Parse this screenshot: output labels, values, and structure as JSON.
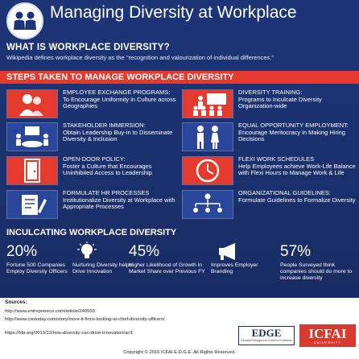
{
  "header": {
    "title": "Managing Diversity at Workplace",
    "icon": "people-icon"
  },
  "what_is": {
    "heading": "WHAT IS WORKPLACE DIVERSITY?",
    "text": "Wikipedia defines workplace diversity as the \"recognition and valourization of individual differences.\""
  },
  "steps": {
    "heading": "STEPS TAKEN TO MANAGE WORKPLACE DIVERSITY",
    "items": [
      {
        "title": "EMPLOYEE EXCHANGE PROGRAMS:",
        "desc": "To Encourage Uniformity in Culture across Geographies",
        "icon": "people-exchange-icon",
        "color": "#e63a2e"
      },
      {
        "title": "DIVERSITY TRAINING:",
        "desc": "Programs to Inculcate Diversity Organization-wide",
        "icon": "classroom-icon",
        "color": "#e63a2e"
      },
      {
        "title": "STAKEHOLDER IMMERSION:",
        "desc": "Obtain Leadership Buy-in to Disseminate Diversity & Inclusion",
        "icon": "meeting-icon",
        "color": "#2a469a"
      },
      {
        "title": "EQUAL OPPORTUNITY EMPLOYMENT:",
        "desc": "Encourage Meritocracy in Making Hiring Decisions",
        "icon": "gender-icon",
        "color": "#2a469a"
      },
      {
        "title": "OPEN-DOOR POLICY:",
        "desc": "Foster a Culture that Encourages Uninhibited Access to Leadership",
        "icon": "door-icon",
        "color": "#e63a2e"
      },
      {
        "title": "FLEXI WORK SCHEDULES",
        "desc": "Help Employees achieve Work-Life Balance with Flexi Hours to Manage Work & Life",
        "icon": "clock-icon",
        "color": "#e63a2e"
      },
      {
        "title": "FORMULATE HR PROCESSES",
        "desc": "Institutionalize Diversity at Workplace with Appropriate Processes",
        "icon": "document-icon",
        "color": "#2a469a"
      },
      {
        "title": "ORGANIZATIONAL GUIDELINES:",
        "desc": "Formulate Guidelines to Formalize Diversity",
        "icon": "org-chart-icon",
        "color": "#2a469a"
      }
    ]
  },
  "inculcating": {
    "heading": "INCULCATING WORKPLACE DIVERSITY",
    "stats": [
      {
        "value": "20%",
        "text": "Fortune 500 Companies Employ Diversity Officers"
      },
      {
        "value": "",
        "text": "Nurturing Diversity helps Drive Innovation",
        "icon": "lightbulb-icon"
      },
      {
        "value": "45%",
        "text": "Higher Likelihood of Growth in Market Share over Previous FY"
      },
      {
        "value": "",
        "text": "Improves Employer Branding",
        "icon": "megaphone-icon"
      },
      {
        "value": "57%",
        "text": "People Surveyed think companies should do more to increase diversity"
      }
    ]
  },
  "sources": {
    "heading": "Sources:",
    "links": [
      "http://www.entrepreneur.com/article/240550",
      "http://www.cxotoday.com/story/more-it-firms-looking-at-chief-diversity-officers/",
      "https://hbr.org/2013/12/how-diversity-can-drive-innovation/ar/1"
    ]
  },
  "logos": {
    "edge": "EDGE",
    "edge_sub": "Education Designed for Growth & Excellence",
    "icfai": "ICFAI",
    "icfai_sub": "UNIVERSITY"
  },
  "footer": {
    "copyright": "Copyright © 2016 ICFAI E.D.G.E. All Rights Reserved."
  },
  "colors": {
    "background": "#1b2f6b",
    "accent_red": "#e63a2e",
    "accent_blue": "#2a469a"
  }
}
